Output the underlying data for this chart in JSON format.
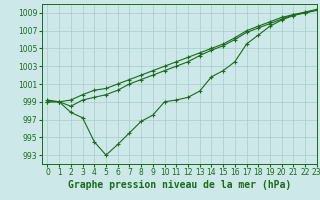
{
  "background_color": "#cde8e8",
  "grid_color": "#aacccc",
  "line_color": "#1a6b1a",
  "title": "Graphe pression niveau de la mer (hPa)",
  "xlim": [
    -0.5,
    23
  ],
  "ylim": [
    992.0,
    1010.0
  ],
  "yticks": [
    993,
    995,
    997,
    999,
    1001,
    1003,
    1005,
    1007,
    1009
  ],
  "xticks": [
    0,
    1,
    2,
    3,
    4,
    5,
    6,
    7,
    8,
    9,
    10,
    11,
    12,
    13,
    14,
    15,
    16,
    17,
    18,
    19,
    20,
    21,
    22,
    23
  ],
  "line1_x": [
    0,
    1,
    2,
    3,
    4,
    5,
    6,
    7,
    8,
    9,
    10,
    11,
    12,
    13,
    14,
    15,
    16,
    17,
    18,
    19,
    20,
    21,
    22,
    23
  ],
  "line1_y": [
    999.0,
    999.0,
    997.8,
    997.2,
    994.5,
    993.0,
    994.2,
    995.5,
    996.8,
    997.5,
    999.0,
    999.2,
    999.5,
    1000.2,
    1001.8,
    1002.5,
    1003.5,
    1005.5,
    1006.5,
    1007.5,
    1008.2,
    1008.7,
    1009.0,
    1009.3
  ],
  "line2_x": [
    0,
    1,
    2,
    3,
    4,
    5,
    6,
    7,
    8,
    9,
    10,
    11,
    12,
    13,
    14,
    15,
    16,
    17,
    18,
    19,
    20,
    21,
    22,
    23
  ],
  "line2_y": [
    999.2,
    999.0,
    999.2,
    999.8,
    1000.3,
    1000.5,
    1001.0,
    1001.5,
    1002.0,
    1002.5,
    1003.0,
    1003.5,
    1004.0,
    1004.5,
    1005.0,
    1005.5,
    1006.2,
    1007.0,
    1007.5,
    1008.0,
    1008.5,
    1008.8,
    1009.0,
    1009.3
  ],
  "line3_x": [
    0,
    1,
    2,
    3,
    4,
    5,
    6,
    7,
    8,
    9,
    10,
    11,
    12,
    13,
    14,
    15,
    16,
    17,
    18,
    19,
    20,
    21,
    22,
    23
  ],
  "line3_y": [
    999.0,
    999.0,
    998.5,
    999.2,
    999.5,
    999.8,
    1000.3,
    1001.0,
    1001.5,
    1002.0,
    1002.5,
    1003.0,
    1003.5,
    1004.2,
    1004.8,
    1005.3,
    1006.0,
    1006.8,
    1007.3,
    1007.8,
    1008.3,
    1008.8,
    1009.1,
    1009.4
  ],
  "title_fontsize": 7,
  "tick_fontsize": 5.5
}
